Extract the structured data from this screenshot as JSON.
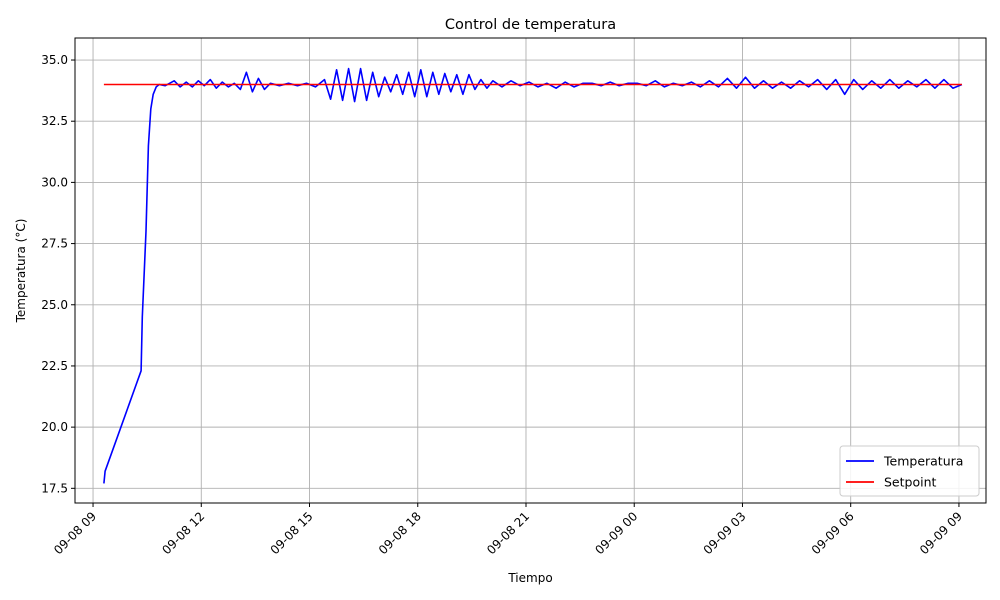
{
  "chart_data": {
    "type": "line",
    "title": "Control de temperatura",
    "xlabel": "Tiempo",
    "ylabel": "Temperatura (°C)",
    "xlim": [
      "2025-09-08 08:30",
      "2025-09-09 09:45"
    ],
    "ylim": [
      16.9,
      35.9
    ],
    "x_ticks": [
      "09-08 09",
      "09-08 12",
      "09-08 15",
      "09-08 18",
      "09-08 21",
      "09-09 00",
      "09-09 03",
      "09-09 06",
      "09-09 09"
    ],
    "y_ticks": [
      "17.5",
      "20.0",
      "22.5",
      "25.0",
      "27.5",
      "30.0",
      "32.5",
      "35.0"
    ],
    "grid": true,
    "legend_position": "lower-right",
    "series": [
      {
        "name": "Temperatura",
        "color": "#0000ff",
        "x": [
          "2025-09-08 09:18",
          "2025-09-08 09:20",
          "2025-09-08 10:20",
          "2025-09-08 10:22",
          "2025-09-08 10:28",
          "2025-09-08 10:32",
          "2025-09-08 10:36",
          "2025-09-08 10:40",
          "2025-09-08 10:45",
          "2025-09-08 10:50",
          "2025-09-08 11:00",
          "2025-09-08 11:15",
          "2025-09-08 11:25",
          "2025-09-08 11:35",
          "2025-09-08 11:45",
          "2025-09-08 11:55",
          "2025-09-08 12:05",
          "2025-09-08 12:15",
          "2025-09-08 12:25",
          "2025-09-08 12:35",
          "2025-09-08 12:45",
          "2025-09-08 12:55",
          "2025-09-08 13:05",
          "2025-09-08 13:15",
          "2025-09-08 13:25",
          "2025-09-08 13:35",
          "2025-09-08 13:45",
          "2025-09-08 13:55",
          "2025-09-08 14:10",
          "2025-09-08 14:25",
          "2025-09-08 14:40",
          "2025-09-08 14:55",
          "2025-09-08 15:10",
          "2025-09-08 15:25",
          "2025-09-08 15:35",
          "2025-09-08 15:45",
          "2025-09-08 15:55",
          "2025-09-08 16:05",
          "2025-09-08 16:15",
          "2025-09-08 16:25",
          "2025-09-08 16:35",
          "2025-09-08 16:45",
          "2025-09-08 16:55",
          "2025-09-08 17:05",
          "2025-09-08 17:15",
          "2025-09-08 17:25",
          "2025-09-08 17:35",
          "2025-09-08 17:45",
          "2025-09-08 17:55",
          "2025-09-08 18:05",
          "2025-09-08 18:15",
          "2025-09-08 18:25",
          "2025-09-08 18:35",
          "2025-09-08 18:45",
          "2025-09-08 18:55",
          "2025-09-08 19:05",
          "2025-09-08 19:15",
          "2025-09-08 19:25",
          "2025-09-08 19:35",
          "2025-09-08 19:45",
          "2025-09-08 19:55",
          "2025-09-08 20:05",
          "2025-09-08 20:20",
          "2025-09-08 20:35",
          "2025-09-08 20:50",
          "2025-09-08 21:05",
          "2025-09-08 21:20",
          "2025-09-08 21:35",
          "2025-09-08 21:50",
          "2025-09-08 22:05",
          "2025-09-08 22:20",
          "2025-09-08 22:35",
          "2025-09-08 22:50",
          "2025-09-08 23:05",
          "2025-09-08 23:20",
          "2025-09-08 23:35",
          "2025-09-08 23:50",
          "2025-09-09 00:05",
          "2025-09-09 00:20",
          "2025-09-09 00:35",
          "2025-09-09 00:50",
          "2025-09-09 01:05",
          "2025-09-09 01:20",
          "2025-09-09 01:35",
          "2025-09-09 01:50",
          "2025-09-09 02:05",
          "2025-09-09 02:20",
          "2025-09-09 02:35",
          "2025-09-09 02:50",
          "2025-09-09 03:05",
          "2025-09-09 03:20",
          "2025-09-09 03:35",
          "2025-09-09 03:50",
          "2025-09-09 04:05",
          "2025-09-09 04:20",
          "2025-09-09 04:35",
          "2025-09-09 04:50",
          "2025-09-09 05:05",
          "2025-09-09 05:20",
          "2025-09-09 05:35",
          "2025-09-09 05:50",
          "2025-09-09 06:05",
          "2025-09-09 06:20",
          "2025-09-09 06:35",
          "2025-09-09 06:50",
          "2025-09-09 07:05",
          "2025-09-09 07:20",
          "2025-09-09 07:35",
          "2025-09-09 07:50",
          "2025-09-09 08:05",
          "2025-09-09 08:20",
          "2025-09-09 08:35",
          "2025-09-09 08:50",
          "2025-09-09 09:05"
        ],
        "y": [
          17.7,
          18.2,
          22.3,
          24.5,
          28.0,
          31.5,
          33.0,
          33.6,
          33.9,
          34.0,
          33.95,
          34.15,
          33.9,
          34.1,
          33.9,
          34.15,
          33.95,
          34.2,
          33.85,
          34.1,
          33.9,
          34.05,
          33.8,
          34.5,
          33.7,
          34.25,
          33.8,
          34.05,
          33.95,
          34.05,
          33.95,
          34.05,
          33.9,
          34.2,
          33.4,
          34.6,
          33.35,
          34.65,
          33.3,
          34.65,
          33.35,
          34.5,
          33.5,
          34.3,
          33.7,
          34.4,
          33.6,
          34.5,
          33.5,
          34.6,
          33.5,
          34.5,
          33.6,
          34.45,
          33.7,
          34.4,
          33.6,
          34.4,
          33.8,
          34.2,
          33.85,
          34.15,
          33.9,
          34.15,
          33.95,
          34.1,
          33.9,
          34.05,
          33.85,
          34.1,
          33.9,
          34.05,
          34.05,
          33.95,
          34.1,
          33.95,
          34.05,
          34.05,
          33.95,
          34.15,
          33.9,
          34.05,
          33.95,
          34.1,
          33.9,
          34.15,
          33.9,
          34.25,
          33.85,
          34.3,
          33.85,
          34.15,
          33.85,
          34.1,
          33.85,
          34.15,
          33.9,
          34.2,
          33.8,
          34.2,
          33.6,
          34.2,
          33.8,
          34.15,
          33.85,
          34.2,
          33.85,
          34.15,
          33.9,
          34.2,
          33.85,
          34.2,
          33.85,
          34.0
        ]
      },
      {
        "name": "Setpoint",
        "color": "#ff0000",
        "x": [
          "2025-09-08 09:18",
          "2025-09-09 09:05"
        ],
        "y": [
          34.0,
          34.0
        ]
      }
    ]
  }
}
